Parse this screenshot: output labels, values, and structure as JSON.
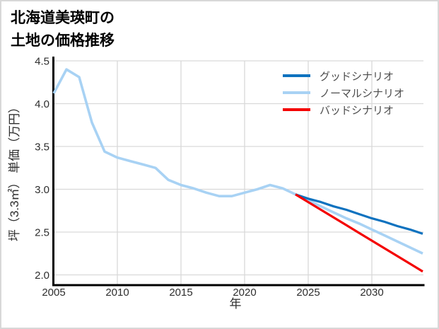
{
  "window": {
    "background": "#ffffff",
    "border_color": "#d8d8d8"
  },
  "title": "北海道美瑛町の\n土地の価格推移",
  "legend": {
    "position": "top-right",
    "items": [
      {
        "label": "グッドシナリオ",
        "color": "#0e72bf"
      },
      {
        "label": "ノーマルシナリオ",
        "color": "#a8d2f4"
      },
      {
        "label": "バッドシナリオ",
        "color": "#f40000"
      }
    ]
  },
  "axes": {
    "axis_color": "#000000",
    "grid_color": "#d9d9d9",
    "tick_color": "#2e2e2e"
  },
  "chart_data": {
    "type": "line",
    "title": "北海道美瑛町の土地の価格推移",
    "xlabel": "年",
    "ylabel": "坪（3.3㎡） 単価（万円）",
    "xlim": [
      2005,
      2034
    ],
    "ylim": [
      1.88,
      4.53
    ],
    "xticks": [
      2005,
      2010,
      2015,
      2020,
      2025,
      2030
    ],
    "yticks": [
      2.0,
      2.5,
      3.0,
      3.5,
      4.0,
      4.5
    ],
    "grid": true,
    "legend_position": "top-right",
    "series": [
      {
        "name": "グッドシナリオ",
        "color": "#0e72bf",
        "x": [
          2024,
          2025,
          2026,
          2027,
          2028,
          2029,
          2030,
          2031,
          2032,
          2033,
          2034
        ],
        "y": [
          2.94,
          2.89,
          2.85,
          2.8,
          2.76,
          2.71,
          2.66,
          2.62,
          2.57,
          2.53,
          2.48
        ]
      },
      {
        "name": "ノーマルシナリオ",
        "color": "#a8d2f4",
        "x": [
          2005,
          2006,
          2007,
          2008,
          2009,
          2010,
          2011,
          2012,
          2013,
          2014,
          2015,
          2016,
          2017,
          2018,
          2019,
          2020,
          2021,
          2022,
          2023,
          2024,
          2025,
          2026,
          2027,
          2028,
          2029,
          2030,
          2031,
          2032,
          2033,
          2034
        ],
        "y": [
          4.12,
          4.4,
          4.31,
          3.78,
          3.44,
          3.37,
          3.33,
          3.29,
          3.25,
          3.11,
          3.05,
          3.01,
          2.96,
          2.92,
          2.92,
          2.96,
          3.0,
          3.05,
          3.01,
          2.94,
          2.87,
          2.8,
          2.73,
          2.66,
          2.6,
          2.53,
          2.46,
          2.39,
          2.32,
          2.25
        ]
      },
      {
        "name": "バッドシナリオ",
        "color": "#f40000",
        "x": [
          2024,
          2025,
          2026,
          2027,
          2028,
          2029,
          2030,
          2031,
          2032,
          2033,
          2034
        ],
        "y": [
          2.94,
          2.85,
          2.76,
          2.67,
          2.58,
          2.49,
          2.4,
          2.31,
          2.22,
          2.13,
          2.04
        ]
      }
    ]
  }
}
